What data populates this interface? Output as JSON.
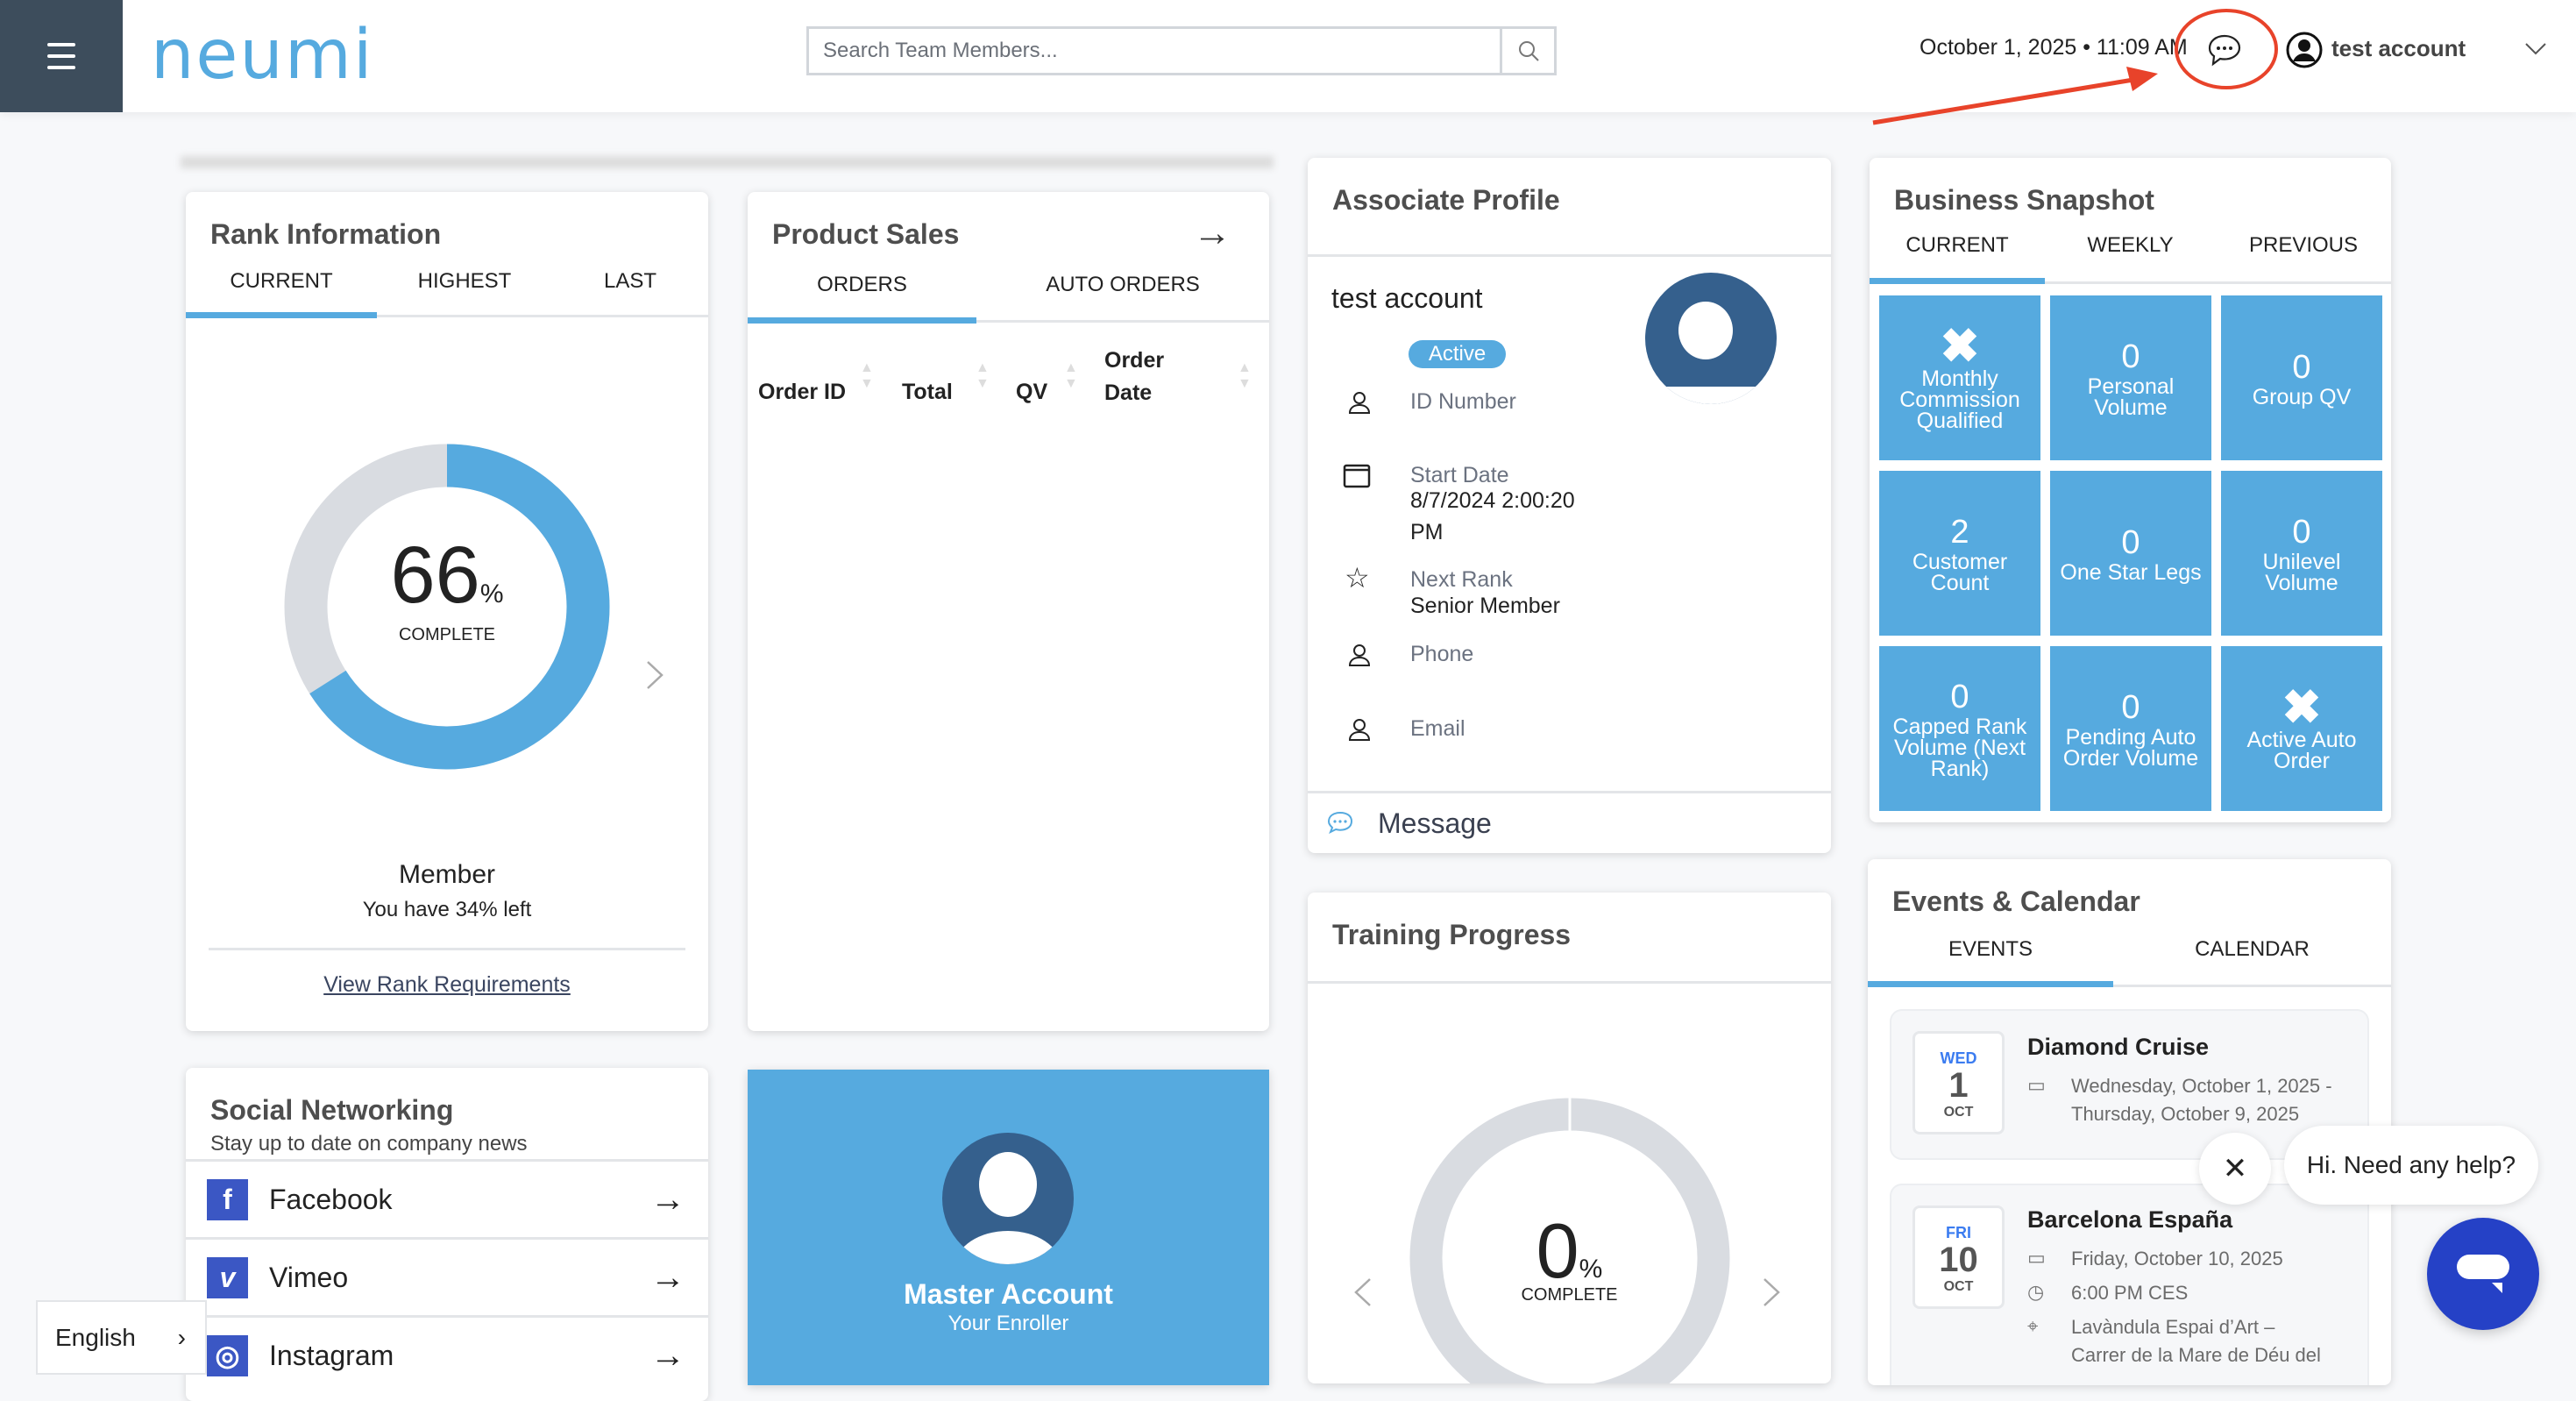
{
  "header": {
    "logo": "neumi",
    "search_placeholder": "Search Team Members...",
    "datetime": "October 1, 2025 • 11:09 AM",
    "username": "test account",
    "annotation_color": "#e8432a"
  },
  "colors": {
    "accent": "#56aadf",
    "sidebar": "#3d4d5c",
    "chat_fab": "#2541c6",
    "avatar": "#35608d"
  },
  "rank": {
    "title": "Rank Information",
    "tabs": [
      "CURRENT",
      "HIGHEST",
      "LAST"
    ],
    "percent": 66,
    "percent_label": "66",
    "percent_sign": "%",
    "complete_label": "COMPLETE",
    "rank_name": "Member",
    "remaining": "You have 34% left",
    "link": "View Rank Requirements"
  },
  "product_sales": {
    "title": "Product Sales",
    "tabs": [
      "ORDERS",
      "AUTO ORDERS"
    ],
    "columns": [
      "Order ID",
      "Total",
      "QV",
      "Order",
      "Date"
    ]
  },
  "profile": {
    "title": "Associate Profile",
    "name": "test account",
    "status": "Active",
    "id_label": "ID Number",
    "start_label": "Start Date",
    "start_value_1": "8/7/2024 2:00:20",
    "start_value_2": "PM",
    "next_rank_label": "Next Rank",
    "next_rank_value": "Senior Member",
    "phone_label": "Phone",
    "email_label": "Email",
    "message": "Message"
  },
  "snapshot": {
    "title": "Business Snapshot",
    "tabs": [
      "CURRENT",
      "WEEKLY",
      "PREVIOUS"
    ],
    "tiles": [
      {
        "value": "✖",
        "label": "Monthly Commission Qualified"
      },
      {
        "value": "0",
        "label": "Personal Volume"
      },
      {
        "value": "0",
        "label": "Group QV"
      },
      {
        "value": "2",
        "label": "Customer Count"
      },
      {
        "value": "0",
        "label": "One Star Legs"
      },
      {
        "value": "0",
        "label": "Unilevel Volume"
      },
      {
        "value": "0",
        "label": "Capped Rank Volume (Next Rank)"
      },
      {
        "value": "0",
        "label": "Pending Auto Order Volume"
      },
      {
        "value": "✖",
        "label": "Active Auto Order"
      }
    ]
  },
  "training": {
    "title": "Training Progress",
    "percent": 0,
    "percent_label": "0",
    "percent_sign": "%",
    "complete_label": "COMPLETE"
  },
  "social": {
    "title": "Social Networking",
    "subtitle": "Stay up to date on company news",
    "items": [
      {
        "name": "Facebook",
        "icon": "f"
      },
      {
        "name": "Vimeo",
        "icon": "v"
      },
      {
        "name": "Instagram",
        "icon": "◎"
      }
    ]
  },
  "enroller": {
    "name": "Master Account",
    "role": "Your Enroller"
  },
  "events": {
    "title": "Events & Calendar",
    "tabs": [
      "EVENTS",
      "CALENDAR"
    ],
    "items": [
      {
        "dow": "WED",
        "day": "1",
        "mon": "OCT",
        "title": "Diamond Cruise",
        "date1": "Wednesday, October 1, 2025 -",
        "date2": "Thursday, October 9, 2025"
      },
      {
        "dow": "FRI",
        "day": "10",
        "mon": "OCT",
        "title": "Barcelona España",
        "date1": "Friday, October 10, 2025",
        "time": "6:00 PM CES",
        "loc1": "Lavàndula Espai d’Art –",
        "loc2": "Carrer de la Mare de Déu del"
      }
    ]
  },
  "language": "English",
  "chat": {
    "bubble": "Hi. Need any help?"
  }
}
